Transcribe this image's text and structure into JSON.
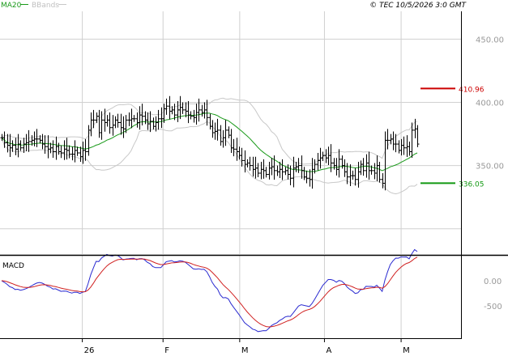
{
  "colors": {
    "background": "#ffffff",
    "grid": "#d0d0d0",
    "frame": "#000000",
    "price_bars": "#000000",
    "ma20": "#1a9a1a",
    "bbands": "#c8c8c8",
    "macd": "#2a2ad0",
    "signal": "#d02020",
    "resistance": "#cc0000",
    "support": "#119911",
    "axis_text": "#999999"
  },
  "header": {
    "ma_legend": "MA20",
    "bb_legend": "BBands",
    "copyright": "© TEC 10/5/2026 3:0 GMT"
  },
  "macd_panel": {
    "label": "MACD"
  },
  "chart_data": [
    {
      "type": "ohlc",
      "panel": "price",
      "ylim": [
        280,
        472
      ],
      "yticks": [
        {
          "value": 450,
          "label": "450.00"
        },
        {
          "value": 400,
          "label": "400.00"
        },
        {
          "value": 350,
          "label": "350.00"
        }
      ],
      "horizontal_grid": [
        450,
        400,
        350,
        300
      ],
      "x_count": 104,
      "xticks": [
        {
          "index": 20,
          "label": "26"
        },
        {
          "index": 40,
          "label": "F"
        },
        {
          "index": 59,
          "label": "M"
        },
        {
          "index": 80,
          "label": "A"
        },
        {
          "index": 99,
          "label": "M"
        }
      ],
      "closes": [
        372,
        368,
        366,
        364,
        366,
        363,
        367,
        364,
        367,
        368,
        369,
        370,
        371,
        371,
        370,
        367,
        365,
        363,
        364,
        361,
        365,
        361,
        360,
        363,
        362,
        359,
        359,
        362,
        360,
        357,
        362,
        361,
        378,
        386,
        386,
        389,
        376,
        386,
        384,
        386,
        380,
        382,
        386,
        384,
        380,
        379,
        386,
        386,
        387,
        387,
        384,
        390,
        389,
        386,
        383,
        385,
        381,
        384,
        387,
        387,
        395,
        397,
        393,
        394,
        390,
        394,
        396,
        394,
        393,
        390,
        389,
        388,
        392,
        394,
        392,
        394,
        388,
        381,
        376,
        377,
        378,
        369,
        372,
        378,
        374,
        364,
        363,
        361,
        358,
        354,
        351,
        352,
        350,
        347,
        348,
        344,
        347,
        346,
        343,
        348,
        349,
        346,
        345,
        347,
        345,
        346,
        343,
        340,
        348,
        349,
        350,
        346,
        341,
        340,
        339,
        347,
        351,
        354,
        356,
        358,
        356,
        358,
        352,
        350,
        347,
        355,
        350,
        345,
        341,
        342,
        342,
        339,
        345,
        351,
        346,
        352,
        346,
        346,
        344,
        350,
        339,
        336,
        370,
        370,
        371,
        367,
        367,
        362,
        366,
        364,
        365,
        361,
        378,
        379,
        367
      ],
      "levels": [
        {
          "label": "410.96",
          "value": 410.96,
          "color_key": "resistance"
        },
        {
          "label": "336.05",
          "value": 336.05,
          "color_key": "support"
        }
      ],
      "series_names": [
        "MA20",
        "BBands"
      ]
    },
    {
      "type": "line",
      "panel": "macd",
      "ylim": [
        -1150,
        500
      ],
      "yticks": [
        {
          "value": 0,
          "label": "0.00"
        },
        {
          "value": -500,
          "label": "-500"
        }
      ],
      "series": [
        {
          "name": "MACD",
          "color_key": "macd"
        },
        {
          "name": "Signal",
          "color_key": "signal"
        }
      ]
    }
  ]
}
